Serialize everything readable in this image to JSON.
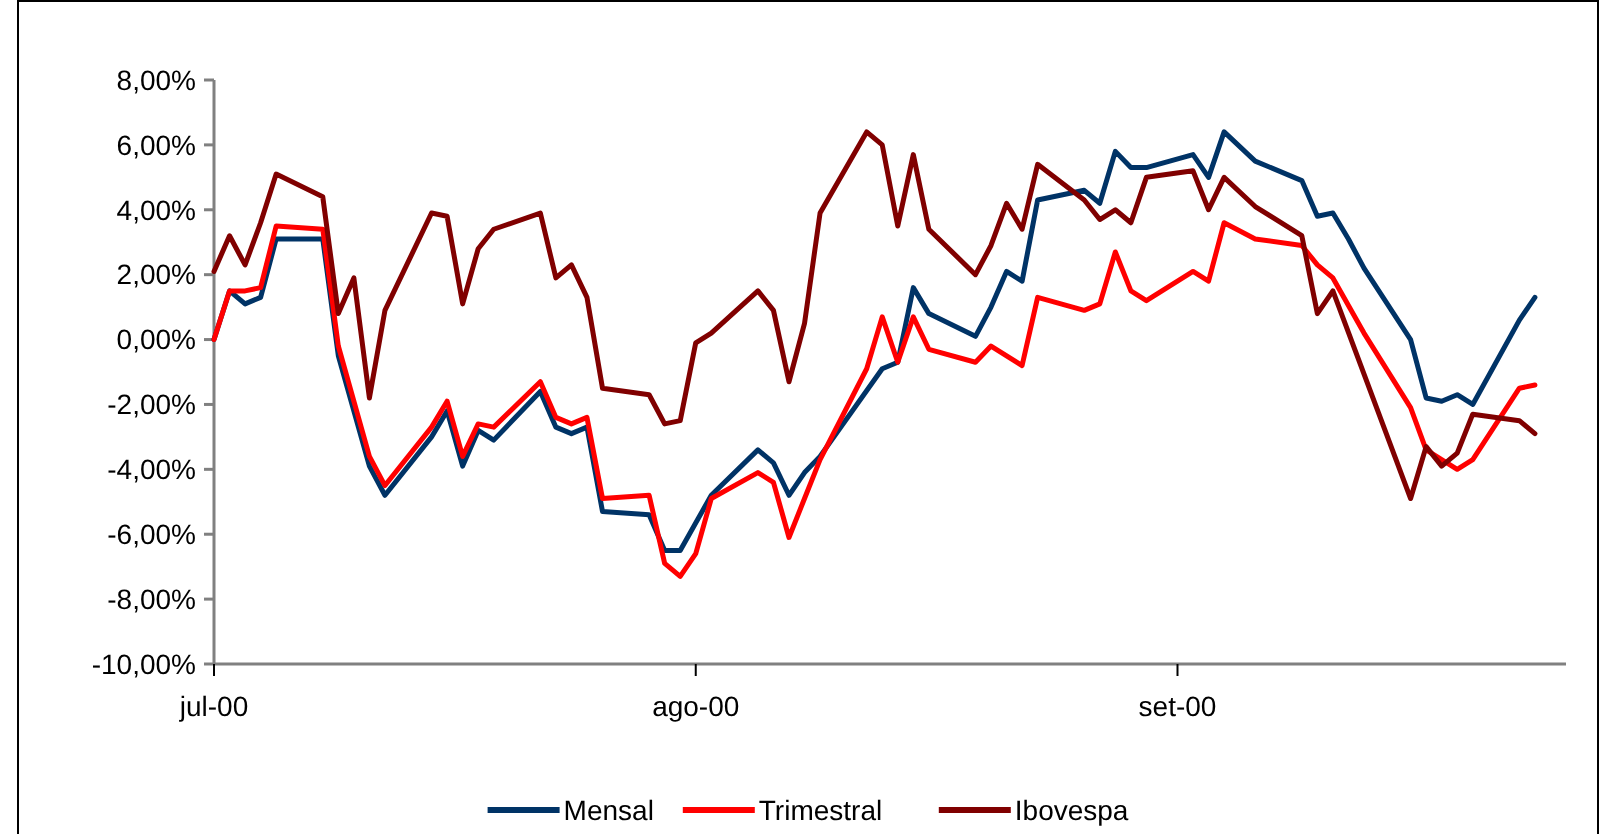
{
  "chart_data": {
    "type": "line",
    "xlim": [
      "2000-07-01",
      "2000-09-26"
    ],
    "xticks": [
      {
        "value": "2000-07-01",
        "label": "jul-00"
      },
      {
        "value": "2000-08-01",
        "label": "ago-00"
      },
      {
        "value": "2000-09-01",
        "label": "set-00"
      }
    ],
    "ylim": [
      -10,
      8
    ],
    "yticks": [
      {
        "value": 8,
        "label": "8,00%"
      },
      {
        "value": 6,
        "label": "6,00%"
      },
      {
        "value": 4,
        "label": "4,00%"
      },
      {
        "value": 2,
        "label": "2,00%"
      },
      {
        "value": 0,
        "label": "0,00%"
      },
      {
        "value": -2,
        "label": "-2,00%"
      },
      {
        "value": -4,
        "label": "-4,00%"
      },
      {
        "value": -6,
        "label": "-6,00%"
      },
      {
        "value": -8,
        "label": "-8,00%"
      },
      {
        "value": -10,
        "label": "-10,00%"
      }
    ],
    "grid": false,
    "legend": "bottom",
    "marker": "none",
    "line_style": "solid",
    "series": [
      {
        "name": "Mensal",
        "color": "#003366",
        "x": [
          "2000-07-01",
          "2000-07-02",
          "2000-07-03",
          "2000-07-04",
          "2000-07-05",
          "2000-07-08",
          "2000-07-09",
          "2000-07-11",
          "2000-07-12",
          "2000-07-15",
          "2000-07-16",
          "2000-07-17",
          "2000-07-18",
          "2000-07-19",
          "2000-07-22",
          "2000-07-23",
          "2000-07-24",
          "2000-07-25",
          "2000-07-26",
          "2000-07-29",
          "2000-07-30",
          "2000-07-31",
          "2000-08-02",
          "2000-08-05",
          "2000-08-06",
          "2000-08-07",
          "2000-08-08",
          "2000-08-09",
          "2000-08-13",
          "2000-08-14",
          "2000-08-15",
          "2000-08-16",
          "2000-08-19",
          "2000-08-20",
          "2000-08-21",
          "2000-08-22",
          "2000-08-23",
          "2000-08-26",
          "2000-08-27",
          "2000-08-28",
          "2000-08-29",
          "2000-08-30",
          "2000-09-02",
          "2000-09-03",
          "2000-09-04",
          "2000-09-06",
          "2000-09-09",
          "2000-09-10",
          "2000-09-11",
          "2000-09-12",
          "2000-09-13",
          "2000-09-16",
          "2000-09-17",
          "2000-09-18",
          "2000-09-19",
          "2000-09-20",
          "2000-09-23",
          "2000-09-24"
        ],
        "values": [
          0.0,
          1.5,
          1.1,
          1.3,
          3.1,
          3.1,
          -0.5,
          -3.9,
          -4.8,
          -3.0,
          -2.2,
          -3.9,
          -2.8,
          -3.1,
          -1.6,
          -2.7,
          -2.9,
          -2.7,
          -5.3,
          -5.4,
          -6.5,
          -6.5,
          -4.8,
          -3.4,
          -3.8,
          -4.8,
          -4.1,
          -3.6,
          -0.9,
          -0.7,
          1.6,
          0.8,
          0.1,
          1.0,
          2.1,
          1.8,
          4.3,
          4.6,
          4.2,
          5.8,
          5.3,
          5.3,
          5.7,
          5.0,
          6.4,
          5.5,
          4.9,
          3.8,
          3.9,
          3.1,
          2.2,
          0.0,
          -1.8,
          -1.9,
          -1.7,
          -2.0,
          0.6,
          1.3
        ]
      },
      {
        "name": "Trimestral",
        "color": "#ff0000",
        "x": [
          "2000-07-01",
          "2000-07-02",
          "2000-07-03",
          "2000-07-04",
          "2000-07-05",
          "2000-07-08",
          "2000-07-09",
          "2000-07-11",
          "2000-07-12",
          "2000-07-15",
          "2000-07-16",
          "2000-07-17",
          "2000-07-18",
          "2000-07-19",
          "2000-07-22",
          "2000-07-23",
          "2000-07-24",
          "2000-07-25",
          "2000-07-26",
          "2000-07-29",
          "2000-07-30",
          "2000-07-31",
          "2000-08-01",
          "2000-08-02",
          "2000-08-05",
          "2000-08-06",
          "2000-08-07",
          "2000-08-08",
          "2000-08-09",
          "2000-08-12",
          "2000-08-13",
          "2000-08-14",
          "2000-08-15",
          "2000-08-16",
          "2000-08-19",
          "2000-08-20",
          "2000-08-22",
          "2000-08-23",
          "2000-08-26",
          "2000-08-27",
          "2000-08-28",
          "2000-08-29",
          "2000-08-30",
          "2000-09-02",
          "2000-09-03",
          "2000-09-04",
          "2000-09-06",
          "2000-09-09",
          "2000-09-10",
          "2000-09-11",
          "2000-09-13",
          "2000-09-16",
          "2000-09-17",
          "2000-09-18",
          "2000-09-19",
          "2000-09-20",
          "2000-09-23",
          "2000-09-24"
        ],
        "values": [
          0.0,
          1.5,
          1.5,
          1.6,
          3.5,
          3.4,
          -0.2,
          -3.6,
          -4.5,
          -2.7,
          -1.9,
          -3.6,
          -2.6,
          -2.7,
          -1.3,
          -2.4,
          -2.6,
          -2.4,
          -4.9,
          -4.8,
          -6.9,
          -7.3,
          -6.6,
          -4.9,
          -4.1,
          -4.4,
          -6.1,
          -4.9,
          -3.7,
          -0.9,
          0.7,
          -0.7,
          0.7,
          -0.3,
          -0.7,
          -0.2,
          -0.8,
          1.3,
          0.9,
          1.1,
          2.7,
          1.5,
          1.2,
          2.1,
          1.8,
          3.6,
          3.1,
          2.9,
          2.3,
          1.9,
          0.2,
          -2.1,
          -3.4,
          -3.7,
          -4.0,
          -3.7,
          -1.5,
          -1.4
        ]
      },
      {
        "name": "Ibovespa",
        "color": "#800000",
        "x": [
          "2000-07-01",
          "2000-07-02",
          "2000-07-03",
          "2000-07-04",
          "2000-07-05",
          "2000-07-08",
          "2000-07-09",
          "2000-07-10",
          "2000-07-11",
          "2000-07-12",
          "2000-07-15",
          "2000-07-16",
          "2000-07-17",
          "2000-07-18",
          "2000-07-19",
          "2000-07-22",
          "2000-07-23",
          "2000-07-24",
          "2000-07-25",
          "2000-07-26",
          "2000-07-29",
          "2000-07-30",
          "2000-07-31",
          "2000-08-01",
          "2000-08-02",
          "2000-08-05",
          "2000-08-06",
          "2000-08-07",
          "2000-08-08",
          "2000-08-09",
          "2000-08-12",
          "2000-08-13",
          "2000-08-14",
          "2000-08-15",
          "2000-08-16",
          "2000-08-19",
          "2000-08-20",
          "2000-08-21",
          "2000-08-22",
          "2000-08-23",
          "2000-08-26",
          "2000-08-27",
          "2000-08-28",
          "2000-08-29",
          "2000-08-30",
          "2000-09-02",
          "2000-09-03",
          "2000-09-04",
          "2000-09-06",
          "2000-09-09",
          "2000-09-10",
          "2000-09-11",
          "2000-09-16",
          "2000-09-17",
          "2000-09-18",
          "2000-09-19",
          "2000-09-20",
          "2000-09-23",
          "2000-09-24"
        ],
        "values": [
          2.1,
          3.2,
          2.3,
          3.6,
          5.1,
          4.4,
          0.8,
          1.9,
          -1.8,
          0.9,
          3.9,
          3.8,
          1.1,
          2.8,
          3.4,
          3.9,
          1.9,
          2.3,
          1.3,
          -1.5,
          -1.7,
          -2.6,
          -2.5,
          -0.1,
          0.2,
          1.5,
          0.9,
          -1.3,
          0.5,
          3.9,
          6.4,
          6.0,
          3.5,
          5.7,
          3.4,
          2.0,
          2.9,
          4.2,
          3.4,
          5.4,
          4.3,
          3.7,
          4.0,
          3.6,
          5.0,
          5.2,
          4.0,
          5.0,
          4.1,
          3.2,
          0.8,
          1.5,
          -4.9,
          -3.3,
          -3.9,
          -3.5,
          -2.3,
          -2.5,
          -2.9
        ]
      }
    ]
  }
}
